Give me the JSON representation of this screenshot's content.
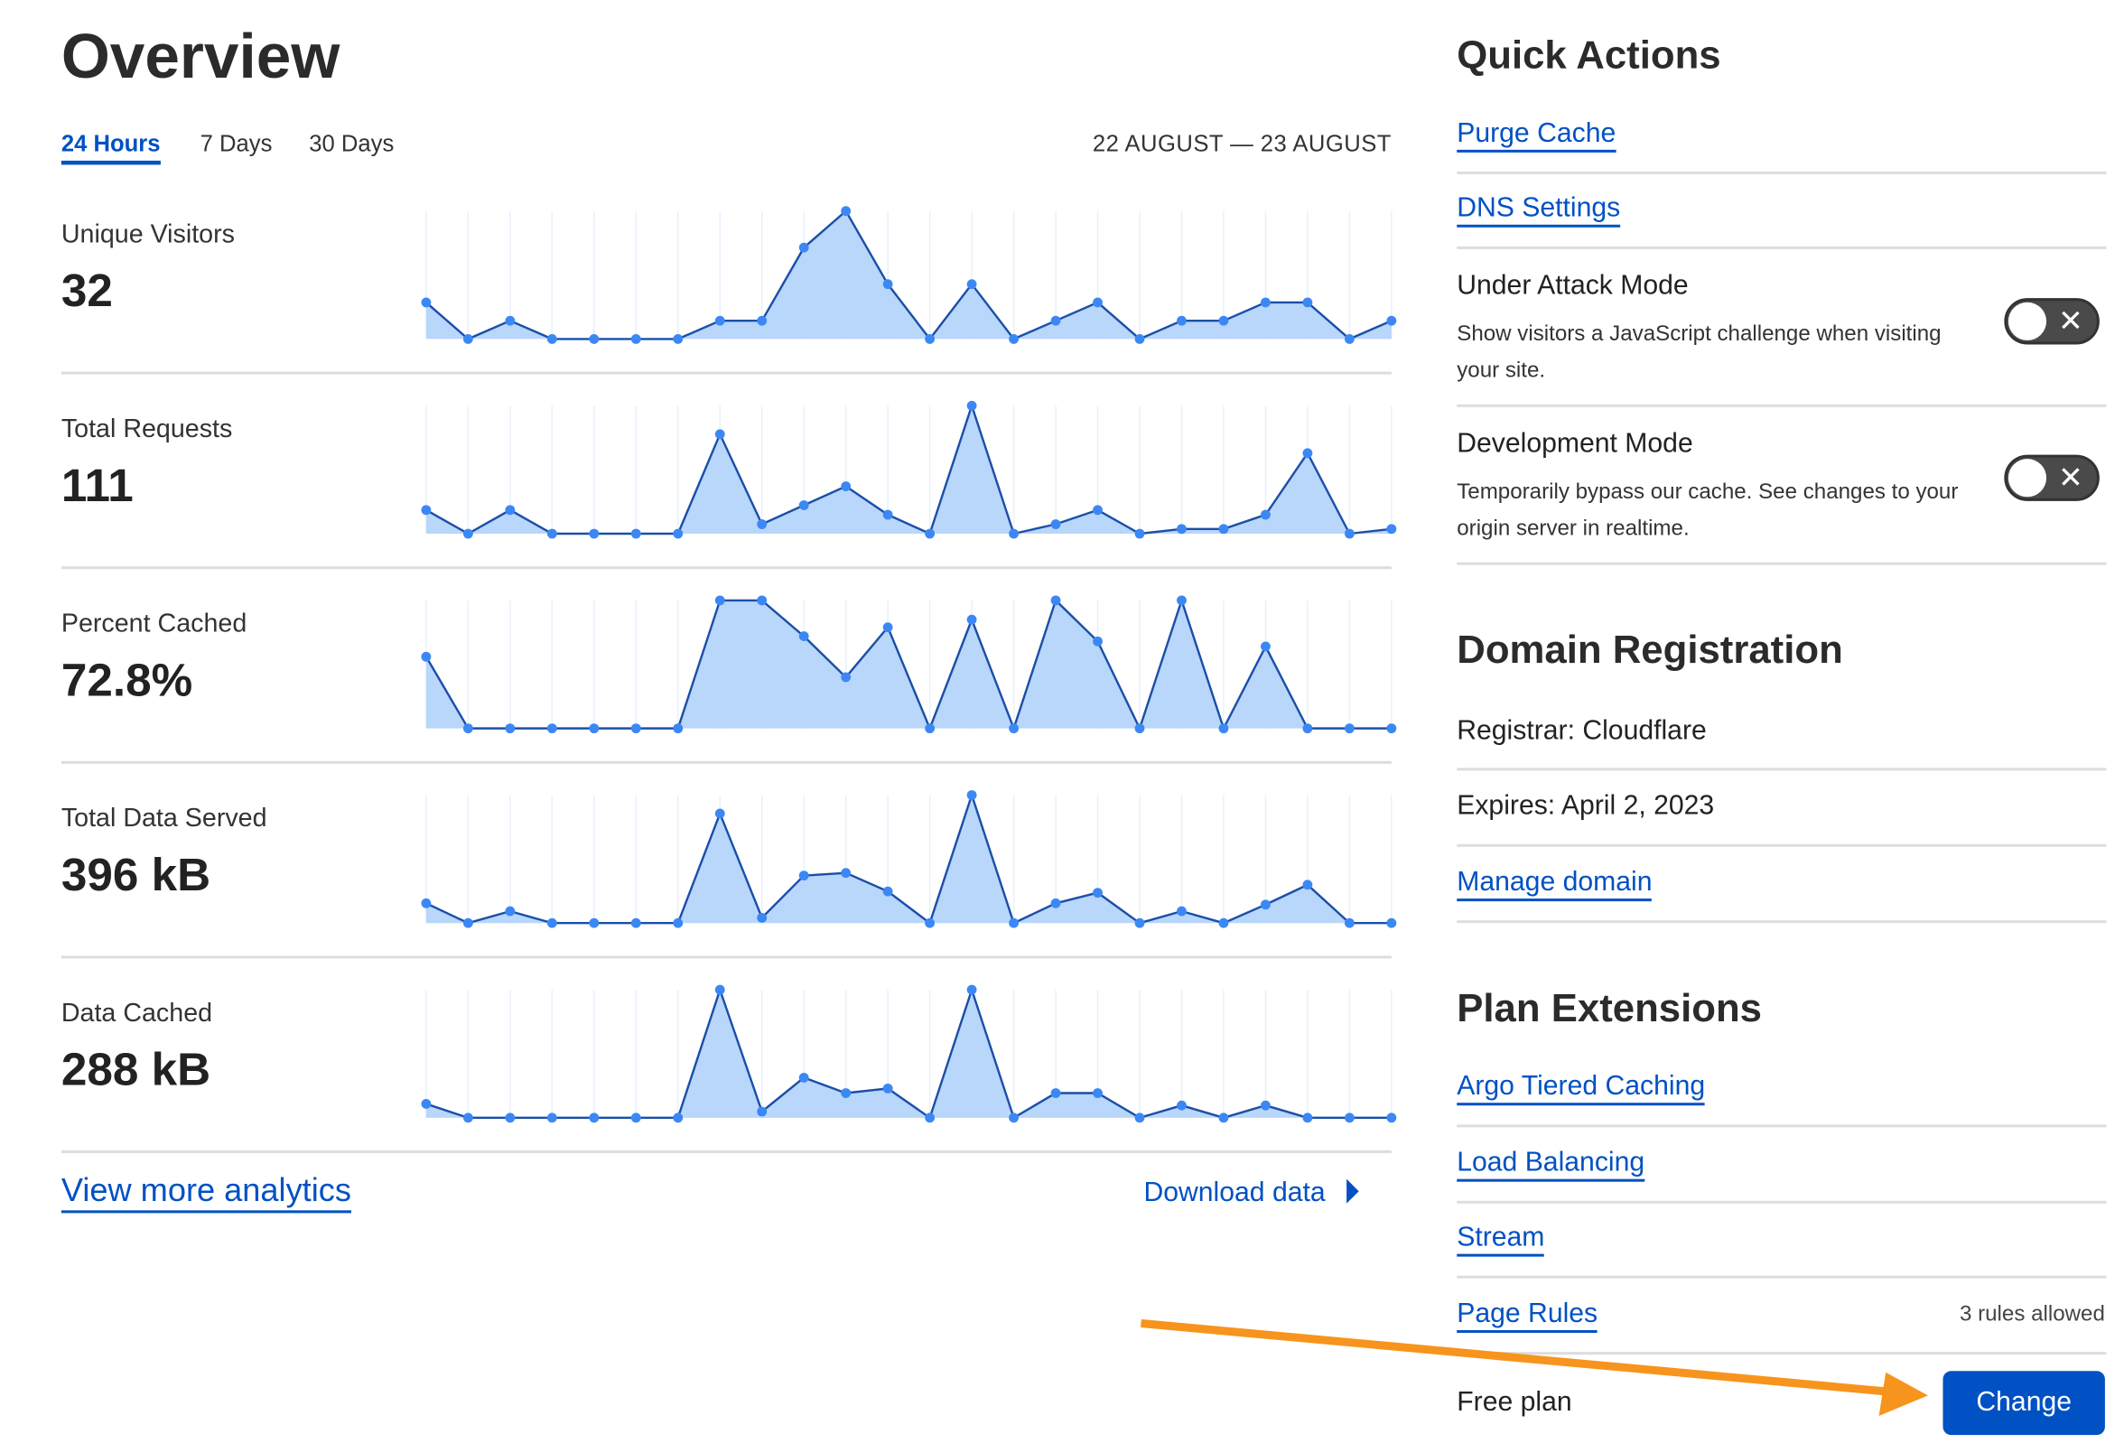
{
  "header": {
    "title": "Overview",
    "tabs": [
      {
        "label": "24 Hours",
        "active": true
      },
      {
        "label": "7 Days"
      },
      {
        "label": "30 Days"
      }
    ],
    "date_range": "22 AUGUST — 23 AUGUST"
  },
  "metrics": [
    {
      "label": "Unique Visitors",
      "value": "32"
    },
    {
      "label": "Total Requests",
      "value": "111"
    },
    {
      "label": "Percent Cached",
      "value": "72.8%"
    },
    {
      "label": "Total Data Served",
      "value": "396 kB"
    },
    {
      "label": "Data Cached",
      "value": "288 kB"
    }
  ],
  "chart_data": [
    {
      "type": "area",
      "series": [
        {
          "values": [
            2,
            0,
            1,
            0,
            0,
            0,
            0,
            1,
            1,
            5,
            7,
            3,
            0,
            3,
            0,
            1,
            2,
            0,
            1,
            1,
            2,
            2,
            0,
            1
          ]
        }
      ]
    },
    {
      "type": "area",
      "series": [
        {
          "values": [
            5,
            0,
            5,
            0,
            0,
            0,
            0,
            21,
            2,
            6,
            10,
            4,
            0,
            27,
            0,
            2,
            5,
            0,
            1,
            1,
            4,
            17,
            0,
            1
          ]
        }
      ]
    },
    {
      "type": "area",
      "series": [
        {
          "values": [
            56,
            0,
            0,
            0,
            0,
            0,
            0,
            100,
            100,
            72,
            40,
            79,
            0,
            85,
            0,
            100,
            68,
            0,
            100,
            0,
            64,
            0,
            0,
            0
          ]
        }
      ]
    },
    {
      "type": "area",
      "series": [
        {
          "values": [
            15,
            0,
            9,
            0,
            0,
            0,
            0,
            83,
            4,
            36,
            38,
            24,
            0,
            97,
            0,
            15,
            23,
            0,
            9,
            0,
            14,
            29,
            0,
            0
          ]
        }
      ]
    },
    {
      "type": "area",
      "series": [
        {
          "values": [
            9,
            0,
            0,
            0,
            0,
            0,
            0,
            83,
            4,
            26,
            16,
            19,
            0,
            83,
            0,
            16,
            16,
            0,
            8,
            0,
            8,
            0,
            0,
            0
          ]
        }
      ]
    }
  ],
  "footer": {
    "view_more": "View more analytics",
    "download": "Download data"
  },
  "quick_actions": {
    "title": "Quick Actions",
    "purge": "Purge Cache",
    "dns": "DNS Settings",
    "under_attack": {
      "title": "Under Attack Mode",
      "desc": "Show visitors a JavaScript challenge when visiting your site.",
      "enabled": false
    },
    "dev_mode": {
      "title": "Development Mode",
      "desc": "Temporarily bypass our cache. See changes to your origin server in realtime.",
      "enabled": false
    }
  },
  "domain": {
    "title": "Domain Registration",
    "registrar": "Registrar: Cloudflare",
    "expires": "Expires: April 2, 2023",
    "manage": "Manage domain"
  },
  "plan": {
    "title": "Plan Extensions",
    "items": [
      "Argo Tiered Caching",
      "Load Balancing",
      "Stream",
      "Page Rules"
    ],
    "page_rules_note": "3 rules allowed",
    "plan_name": "Free plan",
    "change": "Change"
  },
  "colors": {
    "accent": "#0051c3",
    "chart_fill": "#b9d6fb",
    "chart_point": "#3b88f5",
    "annotation_arrow": "#f7941d"
  }
}
